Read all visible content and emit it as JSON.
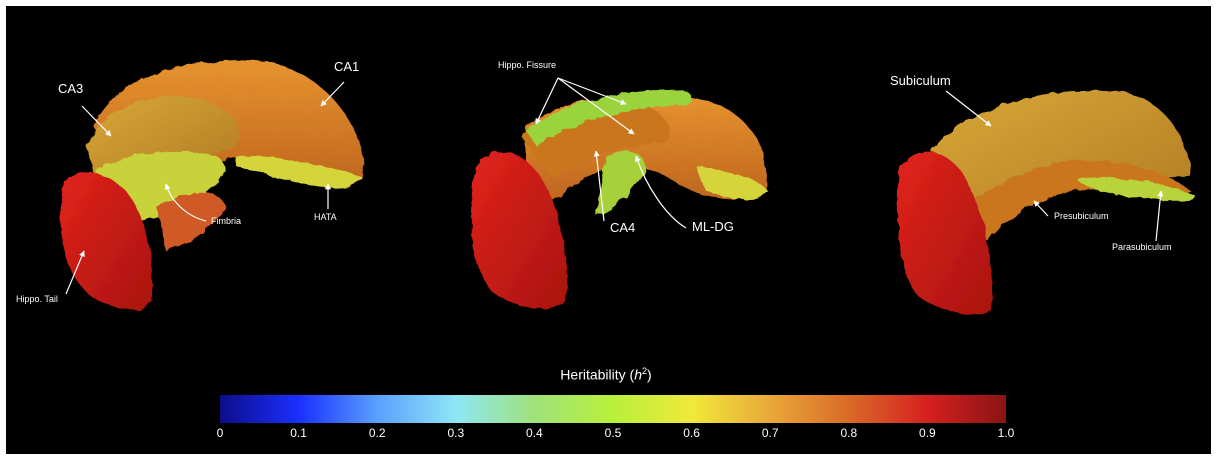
{
  "figure": {
    "colorbar": {
      "title_text": "Heritability (",
      "title_var": "h",
      "title_sup": "2",
      "title_close": ")",
      "min": 0,
      "max": 1.0,
      "ticks": [
        "0",
        "0.1",
        "0.2",
        "0.3",
        "0.4",
        "0.5",
        "0.6",
        "0.7",
        "0.8",
        "0.9",
        "1.0"
      ],
      "stops": [
        "#0d0d8a",
        "#1a2fff",
        "#5aa0ff",
        "#8fe6f5",
        "#9fe27a",
        "#b8f03a",
        "#f0e93a",
        "#e9a83a",
        "#d96a28",
        "#d62020",
        "#8a1414"
      ]
    },
    "panels": [
      {
        "labels": [
          "CA3",
          "CA1",
          "Fimbria",
          "HATA",
          "Hippo. Tail"
        ]
      },
      {
        "labels": [
          "Hippo. Fissure",
          "CA4",
          "ML-DG"
        ]
      },
      {
        "labels": [
          "Subiculum",
          "Presubiculum",
          "Parasubiculum"
        ]
      }
    ]
  }
}
